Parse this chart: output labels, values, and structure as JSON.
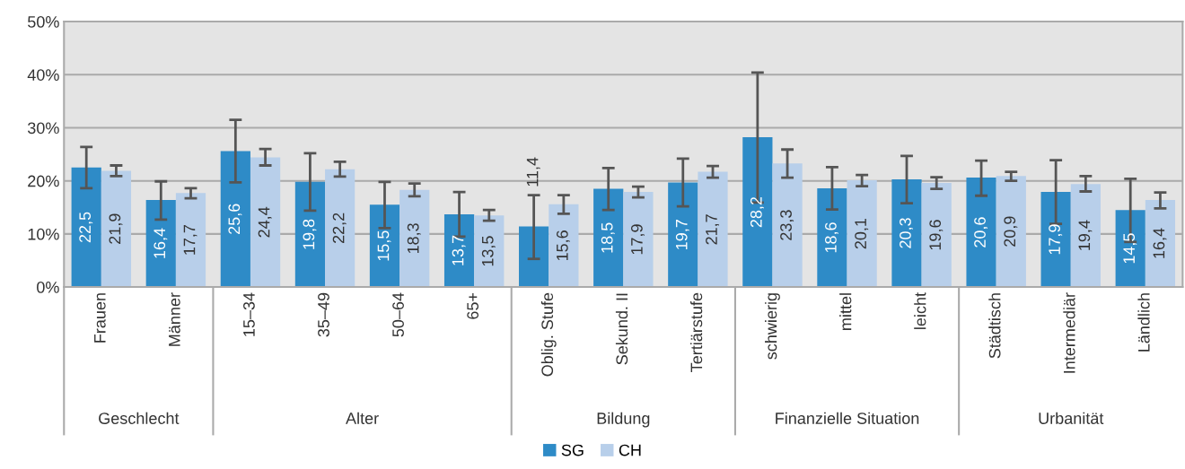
{
  "chart_data": {
    "type": "bar",
    "categories": [
      "Frauen",
      "Männer",
      "15–34",
      "35–49",
      "50–64",
      "65+",
      "Oblig. Stufe",
      "Sekund. II",
      "Tertiärstufe",
      "schwierig",
      "mittel",
      "leicht",
      "Städtisch",
      "Intermediär",
      "Ländlich"
    ],
    "series": [
      {
        "name": "SG",
        "color": "#2e8bc7",
        "values": [
          22.5,
          16.4,
          25.6,
          19.8,
          15.5,
          13.7,
          11.4,
          18.5,
          19.7,
          28.2,
          18.6,
          20.3,
          20.6,
          17.9,
          14.5
        ],
        "value_labels": [
          "22,5",
          "16,4",
          "25,6",
          "19,8",
          "15,5",
          "13,7",
          "11,4",
          "18,5",
          "19,7",
          "28,2",
          "18,6",
          "20,3",
          "20,6",
          "17,9",
          "14,5"
        ],
        "errors": [
          [
            18.6,
            26.4
          ],
          [
            12.7,
            19.9
          ],
          [
            19.7,
            31.5
          ],
          [
            14.4,
            25.2
          ],
          [
            11.1,
            19.8
          ],
          [
            9.5,
            17.9
          ],
          [
            5.3,
            17.3
          ],
          [
            14.5,
            22.4
          ],
          [
            15.2,
            24.2
          ],
          [
            15.9,
            40.4
          ],
          [
            14.6,
            22.6
          ],
          [
            15.8,
            24.7
          ],
          [
            17.2,
            23.8
          ],
          [
            11.9,
            23.9
          ],
          [
            8.5,
            20.4
          ]
        ]
      },
      {
        "name": "CH",
        "color": "#b8cfea",
        "values": [
          21.9,
          17.7,
          24.4,
          22.2,
          18.3,
          13.5,
          15.6,
          17.9,
          21.7,
          23.3,
          20.1,
          19.6,
          20.9,
          19.4,
          16.4
        ],
        "value_labels": [
          "21,9",
          "17,7",
          "24,4",
          "22,2",
          "18,3",
          "13,5",
          "15,6",
          "17,9",
          "21,7",
          "23,3",
          "20,1",
          "19,6",
          "20,9",
          "19,4",
          "16,4"
        ],
        "errors": [
          [
            20.9,
            22.9
          ],
          [
            16.7,
            18.6
          ],
          [
            22.9,
            26.0
          ],
          [
            20.8,
            23.6
          ],
          [
            17.1,
            19.5
          ],
          [
            12.5,
            14.5
          ],
          [
            13.8,
            17.3
          ],
          [
            16.9,
            18.9
          ],
          [
            20.6,
            22.8
          ],
          [
            20.6,
            25.9
          ],
          [
            19.0,
            21.1
          ],
          [
            18.5,
            20.7
          ],
          [
            20.0,
            21.7
          ],
          [
            18.0,
            20.9
          ],
          [
            14.8,
            17.8
          ]
        ]
      }
    ],
    "ylim": [
      0,
      50
    ],
    "yticks": [
      {
        "value": 0,
        "label": "0%"
      },
      {
        "value": 10,
        "label": "10%"
      },
      {
        "value": 20,
        "label": "20%"
      },
      {
        "value": 30,
        "label": "30%"
      },
      {
        "value": 40,
        "label": "40%"
      },
      {
        "value": 50,
        "label": "50%"
      }
    ],
    "annotations": [
      "Geschlecht",
      "Alter",
      "Bildung",
      "Finanzielle Situation",
      "Urbanität"
    ],
    "grid": "y",
    "legend": "bottom"
  }
}
